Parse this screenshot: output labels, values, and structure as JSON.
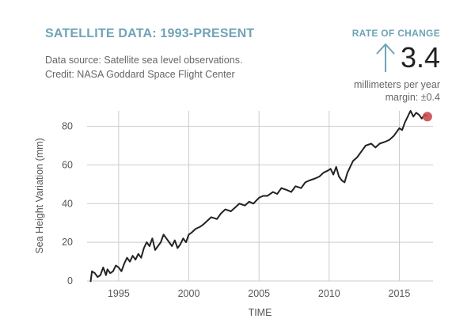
{
  "header": {
    "title": "SATELLITE DATA: 1993-PRESENT",
    "source": "Data source: Satellite sea level observations.",
    "credit": "Credit: NASA Goddard Space Flight Center"
  },
  "rate": {
    "label": "RATE OF CHANGE",
    "value": "3.4",
    "unit": "millimeters per year",
    "margin": "margin: ±0.4",
    "arrow_icon": "arrow-up-icon"
  },
  "colors": {
    "accent": "#6fa3b8",
    "line": "#222222",
    "marker": "#c94a50",
    "grid": "#cccccc"
  },
  "chart_data": {
    "type": "line",
    "title": "",
    "xlabel": "TIME",
    "ylabel": "Sea Height Variation (mm)",
    "xlim": [
      1992.75,
      2017.4
    ],
    "ylim": [
      0,
      88
    ],
    "xticks": [
      1995,
      2000,
      2005,
      2010,
      2015
    ],
    "xtick_labels": [
      "1995",
      "2000",
      "2005",
      "2010",
      "2015"
    ],
    "yticks": [
      0,
      20,
      40,
      60,
      80
    ],
    "ytick_labels": [
      "0",
      "20",
      "40",
      "60",
      "80"
    ],
    "grid": true,
    "series": [
      {
        "x": [
          1993.0,
          1993.1,
          1993.3,
          1993.5,
          1993.7,
          1993.9,
          1994.1,
          1994.2,
          1994.4,
          1994.6,
          1994.8,
          1995.0,
          1995.2,
          1995.4,
          1995.6,
          1995.8,
          1996.0,
          1996.2,
          1996.4,
          1996.6,
          1996.8,
          1997.0,
          1997.2,
          1997.4,
          1997.6,
          1997.8,
          1998.0,
          1998.2,
          1998.4,
          1998.6,
          1998.8,
          1999.0,
          1999.2,
          1999.4,
          1999.6,
          1999.8,
          2000.0,
          2000.2,
          2000.5,
          2000.8,
          2001.0,
          2001.3,
          2001.6,
          2002.0,
          2002.3,
          2002.6,
          2003.0,
          2003.3,
          2003.6,
          2004.0,
          2004.3,
          2004.6,
          2005.0,
          2005.3,
          2005.6,
          2006.0,
          2006.3,
          2006.6,
          2007.0,
          2007.3,
          2007.6,
          2008.0,
          2008.3,
          2008.6,
          2009.0,
          2009.3,
          2009.6,
          2009.9,
          2010.1,
          2010.3,
          2010.5,
          2010.7,
          2010.9,
          2011.1,
          2011.3,
          2011.5,
          2011.7,
          2012.0,
          2012.3,
          2012.6,
          2013.0,
          2013.3,
          2013.6,
          2014.0,
          2014.3,
          2014.6,
          2015.0,
          2015.2,
          2015.4,
          2015.6,
          2015.8,
          2016.0,
          2016.2,
          2016.4,
          2016.6,
          2016.8,
          2017.0
        ],
        "y": [
          -0.5,
          5,
          4,
          2,
          3,
          7,
          3,
          6,
          4,
          5,
          8,
          7,
          5,
          9,
          12,
          10,
          13,
          11,
          14,
          12,
          17,
          20,
          18,
          22,
          16,
          18,
          20,
          24,
          22,
          20,
          18,
          21,
          17,
          19,
          22,
          20,
          24,
          25,
          27,
          28,
          29,
          31,
          33,
          32,
          35,
          37,
          36,
          38,
          40,
          39,
          41,
          40,
          43,
          44,
          44,
          46,
          45,
          48,
          47,
          46,
          49,
          48,
          51,
          52,
          53,
          54,
          56,
          57,
          58,
          55,
          59,
          54,
          52,
          51,
          56,
          59,
          62,
          64,
          67,
          70,
          71,
          69,
          71,
          72,
          73,
          75,
          79,
          78,
          82,
          85,
          88,
          85,
          87,
          86,
          84,
          86,
          85
        ]
      }
    ],
    "marker": {
      "x": 2017.0,
      "y": 85
    }
  }
}
